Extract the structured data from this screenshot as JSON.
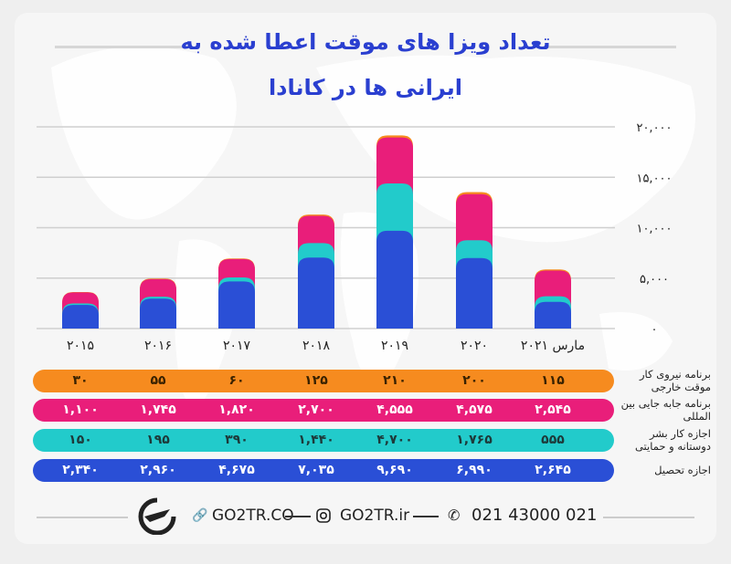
{
  "title_lines": [
    "تعداد ویزا های موقت اعطا شده به",
    "ایرانی ها در کانادا"
  ],
  "colors": {
    "title": "#2a3fd0",
    "orange": "#f68b1f",
    "pink": "#e91e7a",
    "cyan": "#22cbcb",
    "blue": "#2a4fd6"
  },
  "chart_data": {
    "type": "bar",
    "stacked": true,
    "categories": [
      "۲۰۱۵",
      "۲۰۱۶",
      "۲۰۱۷",
      "۲۰۱۸",
      "۲۰۱۹",
      "۲۰۲۰",
      "مارس ۲۰۲۱"
    ],
    "series": [
      {
        "name": "اجازه تحصیل",
        "color": "#2a4fd6",
        "text_color": "#ffffff",
        "values": [
          2340,
          2960,
          4675,
          7035,
          9690,
          6990,
          2645
        ],
        "labels": [
          "۲,۳۴۰",
          "۲,۹۶۰",
          "۴,۶۷۵",
          "۷,۰۳۵",
          "۹,۶۹۰",
          "۶,۹۹۰",
          "۲,۶۴۵"
        ]
      },
      {
        "name": "اجازه کار بشر دوستانه و حمایتی",
        "color": "#22cbcb",
        "text_color": "#1d3a3a",
        "values": [
          150,
          195,
          390,
          1440,
          4700,
          1765,
          555
        ],
        "labels": [
          "۱۵۰",
          "۱۹۵",
          "۳۹۰",
          "۱,۴۴۰",
          "۴,۷۰۰",
          "۱,۷۶۵",
          "۵۵۵"
        ]
      },
      {
        "name": "برنامه جابه جایی بین المللی",
        "color": "#e91e7a",
        "text_color": "#ffffff",
        "values": [
          1100,
          1745,
          1820,
          2700,
          4555,
          4575,
          2545
        ],
        "labels": [
          "۱,۱۰۰",
          "۱,۷۴۵",
          "۱,۸۲۰",
          "۲,۷۰۰",
          "۴,۵۵۵",
          "۴,۵۷۵",
          "۲,۵۴۵"
        ]
      },
      {
        "name": "برنامه نیروی کار موقت خارجی",
        "color": "#f68b1f",
        "text_color": "#3a2200",
        "values": [
          30,
          55,
          60,
          125,
          210,
          200,
          115
        ],
        "labels": [
          "۳۰",
          "۵۵",
          "۶۰",
          "۱۲۵",
          "۲۱۰",
          "۲۰۰",
          "۱۱۵"
        ]
      }
    ],
    "ylim": [
      0,
      20000
    ],
    "yticks": [
      0,
      5000,
      10000,
      15000,
      20000
    ],
    "ytick_labels": [
      "۰",
      "۵,۰۰۰",
      "۱۰,۰۰۰",
      "۱۵,۰۰۰",
      "۲۰,۰۰۰"
    ],
    "grid": true,
    "yaxis_position": "right",
    "legend": "table-below"
  },
  "table_row_order": [
    3,
    2,
    1,
    0
  ],
  "footer": {
    "website": "GO2TR.CO",
    "instagram": "GO2TR.ir",
    "phone": "021 43000 021",
    "icons": [
      "logo-plane",
      "link-icon",
      "instagram-icon",
      "phone-icon"
    ]
  }
}
